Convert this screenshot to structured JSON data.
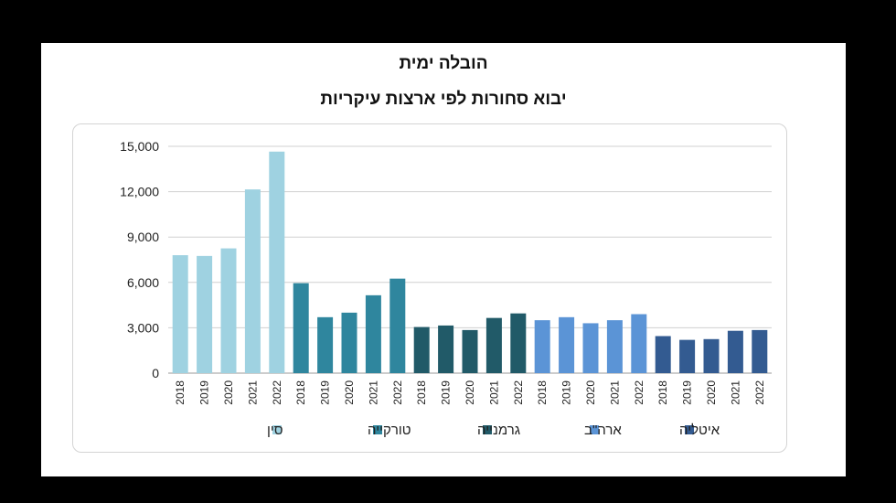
{
  "slide": {
    "title": "הובלה ימית",
    "subtitle": "יבוא סחורות לפי ארצות עיקריות"
  },
  "chart_data": {
    "type": "bar",
    "ylim": [
      0,
      15000
    ],
    "yticks": [
      "0",
      "3,000",
      "6,000",
      "9,000",
      "12,000",
      "15,000"
    ],
    "ytick_values": [
      0,
      3000,
      6000,
      9000,
      12000,
      15000
    ],
    "grid": true,
    "legend_position": "bottom",
    "series": [
      {
        "name": "סין",
        "color": "#9fd2e1",
        "x": [
          "2018",
          "2019",
          "2020",
          "2021",
          "2022"
        ],
        "values": [
          7800,
          7750,
          8250,
          12150,
          14650
        ]
      },
      {
        "name": "טורקייה",
        "color": "#2f869e",
        "x": [
          "2018",
          "2019",
          "2020",
          "2021",
          "2022"
        ],
        "values": [
          5950,
          3700,
          4000,
          5150,
          6250
        ]
      },
      {
        "name": "גרמנייה",
        "color": "#215a68",
        "x": [
          "2018",
          "2019",
          "2020",
          "2021",
          "2022"
        ],
        "values": [
          3050,
          3150,
          2850,
          3650,
          3950
        ]
      },
      {
        "name": "ארה\"ב",
        "color": "#5b94d6",
        "x": [
          "2018",
          "2019",
          "2020",
          "2021",
          "2022"
        ],
        "values": [
          3500,
          3700,
          3300,
          3500,
          3900
        ]
      },
      {
        "name": "איטליה",
        "color": "#335b91",
        "x": [
          "2018",
          "2019",
          "2020",
          "2021",
          "2022"
        ],
        "values": [
          2450,
          2200,
          2250,
          2800,
          2850
        ]
      }
    ]
  }
}
